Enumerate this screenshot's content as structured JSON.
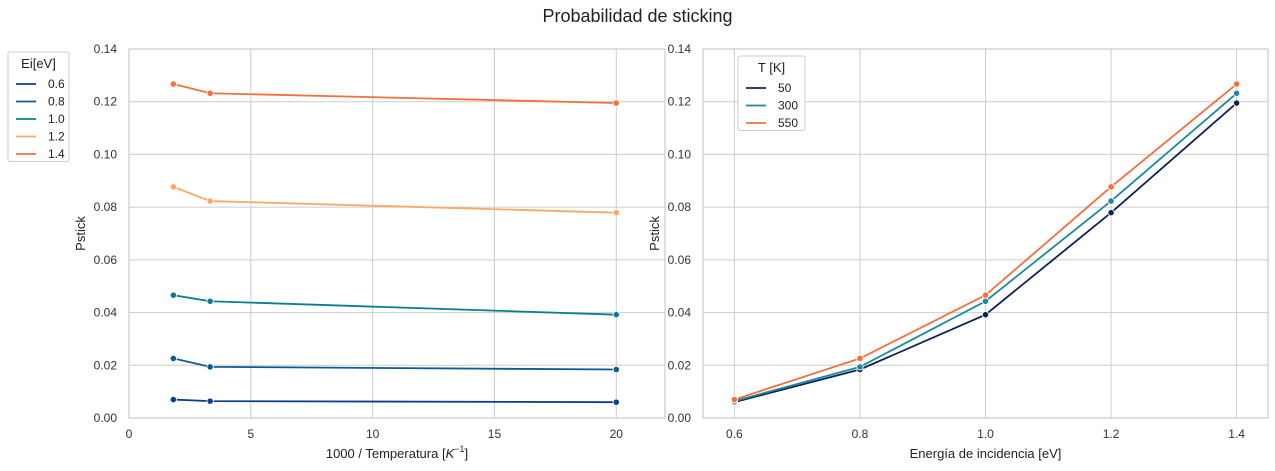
{
  "suptitle": "Probabilidad de sticking",
  "chart_data": [
    {
      "type": "line",
      "xlabel": "1000 / Temperatura [K^-1]",
      "xlabel_display": [
        "1000 / Temperatura [",
        "K",
        "−1",
        "]"
      ],
      "ylabel": "Pstick",
      "xlim": [
        0,
        22
      ],
      "ylim": [
        0,
        0.14
      ],
      "xticks": [
        "0",
        "5",
        "10",
        "15",
        "20"
      ],
      "yticks": [
        "0.00",
        "0.02",
        "0.04",
        "0.06",
        "0.08",
        "0.10",
        "0.12",
        "0.14"
      ],
      "grid": true,
      "legend": {
        "title": "Ei[eV]",
        "placement": "outside-top-left"
      },
      "x": [
        1.82,
        3.33,
        20
      ],
      "series": [
        {
          "name": "0.6",
          "color": "#0b3d91",
          "values": [
            0.007,
            0.0064,
            0.006
          ]
        },
        {
          "name": "0.8",
          "color": "#0a5c94",
          "values": [
            0.0226,
            0.0194,
            0.0184
          ]
        },
        {
          "name": "1.0",
          "color": "#0a7d92",
          "values": [
            0.0466,
            0.0443,
            0.0392
          ]
        },
        {
          "name": "1.2",
          "color": "#f9a865",
          "values": [
            0.0877,
            0.0823,
            0.0779
          ]
        },
        {
          "name": "1.4",
          "color": "#f46f3b",
          "values": [
            0.1267,
            0.1232,
            0.1195
          ]
        }
      ]
    },
    {
      "type": "line",
      "xlabel": "Energía de incidencia [eV]",
      "ylabel": "Pstick",
      "xlim": [
        0.55,
        1.45
      ],
      "ylim": [
        0,
        0.14
      ],
      "xticks": [
        "0.6",
        "0.8",
        "1.0",
        "1.2",
        "1.4"
      ],
      "yticks": [
        "0.00",
        "0.02",
        "0.04",
        "0.06",
        "0.08",
        "0.10",
        "0.12",
        "0.14"
      ],
      "grid": true,
      "legend": {
        "title": "T [K]",
        "placement": "top-left"
      },
      "x": [
        0.6,
        0.8,
        1.0,
        1.2,
        1.4
      ],
      "series": [
        {
          "name": "50",
          "color": "#0c2354",
          "values": [
            0.006,
            0.0184,
            0.0392,
            0.0779,
            0.1195
          ]
        },
        {
          "name": "300",
          "color": "#1b8a9c",
          "values": [
            0.0064,
            0.0194,
            0.0443,
            0.0823,
            0.1232
          ]
        },
        {
          "name": "550",
          "color": "#f46f3b",
          "values": [
            0.007,
            0.0226,
            0.0466,
            0.0877,
            0.1267
          ]
        }
      ]
    }
  ]
}
